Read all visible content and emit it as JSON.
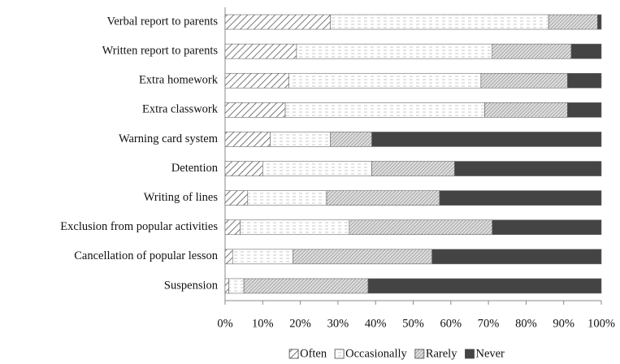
{
  "chart_data": {
    "type": "stacked_bar_horizontal",
    "categories": [
      "Verbal report to parents",
      "Written report to parents",
      "Extra homework",
      "Extra classwork",
      "Warning card system",
      "Detention",
      "Writing of lines",
      "Exclusion from popular activities",
      "Cancellation of popular lesson",
      "Suspension"
    ],
    "series": [
      {
        "name": "Often",
        "color": "#555555",
        "pattern": "diagonal",
        "values": [
          28,
          19,
          17,
          16,
          12,
          10,
          6,
          4,
          2,
          1
        ]
      },
      {
        "name": "Occasionally",
        "color": "#bbbbbb",
        "pattern": "dashed",
        "values": [
          58,
          52,
          51,
          53,
          16,
          29,
          21,
          29,
          16,
          4
        ]
      },
      {
        "name": "Rarely",
        "color": "#888888",
        "pattern": "dense",
        "values": [
          13,
          21,
          23,
          22,
          11,
          22,
          30,
          38,
          37,
          33
        ]
      },
      {
        "name": "Never",
        "color": "#444444",
        "pattern": "solid",
        "values": [
          1,
          8,
          9,
          9,
          61,
          39,
          43,
          29,
          45,
          62
        ]
      }
    ],
    "xlim": [
      0,
      100
    ],
    "xticks": [
      {
        "value": 0,
        "label": "0%"
      },
      {
        "value": 10,
        "label": "10%"
      },
      {
        "value": 20,
        "label": "20%"
      },
      {
        "value": 30,
        "label": "30%"
      },
      {
        "value": 40,
        "label": "40%"
      },
      {
        "value": 50,
        "label": "50%"
      },
      {
        "value": 60,
        "label": "60%"
      },
      {
        "value": 70,
        "label": "70%"
      },
      {
        "value": 80,
        "label": "80%"
      },
      {
        "value": 90,
        "label": "90%"
      },
      {
        "value": 100,
        "label": "100%"
      }
    ],
    "legend": "bottom"
  }
}
